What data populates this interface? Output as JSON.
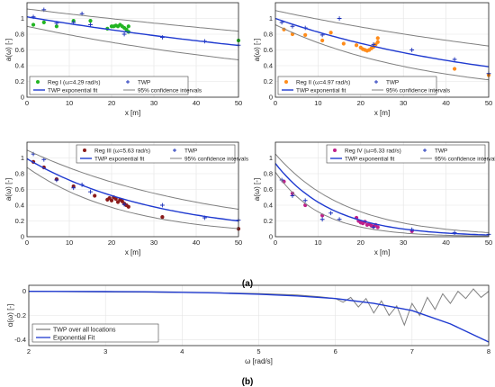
{
  "figure": {
    "label_a": "(a)",
    "label_b": "(b)"
  },
  "colors": {
    "fit": "#1f3ad0",
    "twp": "#1a2fb8",
    "ci": "#808080",
    "reg1": "#22b522",
    "reg2": "#ff8c1a",
    "reg3": "#8b1a1a",
    "reg4": "#c0208a"
  },
  "chart_data": [
    {
      "type": "scatter",
      "xlabel": "x [m]",
      "ylabel": "a(ω) [-]",
      "xlim": [
        0,
        50
      ],
      "ylim": [
        0,
        1.2
      ],
      "xticks": [
        0,
        10,
        20,
        30,
        40,
        50
      ],
      "yticks": [
        0,
        0.2,
        0.4,
        0.6,
        0.8,
        1
      ],
      "grid": true,
      "legend_location": "bottom-left",
      "legend": [
        "Reg I (ω=4.29 rad/s)",
        "TWP",
        "TWP exponential fit",
        "95% confidence intervals"
      ],
      "series": [
        {
          "name": "Reg I (ω=4.29 rad/s)",
          "kind": "dots",
          "color": "reg1",
          "x": [
            1.5,
            4,
            7,
            11,
            15,
            19,
            20,
            20.5,
            21,
            21.5,
            22,
            22.5,
            23,
            23.5,
            24,
            24,
            50
          ],
          "y": [
            0.92,
            0.95,
            0.9,
            0.97,
            0.97,
            0.87,
            0.9,
            0.9,
            0.91,
            0.9,
            0.92,
            0.9,
            0.88,
            0.86,
            0.9,
            0.83,
            0.72
          ]
        },
        {
          "name": "TWP",
          "kind": "plus",
          "color": "twp",
          "x": [
            1.5,
            4,
            7,
            11,
            13,
            15,
            23,
            32,
            42,
            50
          ],
          "y": [
            1.02,
            1.11,
            0.94,
            0.95,
            1.06,
            0.92,
            0.8,
            0.76,
            0.71,
            0.66
          ]
        },
        {
          "name": "TWP exponential fit",
          "kind": "fit",
          "color": "fit",
          "a": 1.02,
          "b": 0.0088
        },
        {
          "name": "95% confidence intervals",
          "kind": "ci",
          "color": "ci",
          "upper": {
            "a": 1.12,
            "b": 0.0058
          },
          "lower": {
            "a": 0.9,
            "b": 0.0128
          }
        }
      ]
    },
    {
      "type": "scatter",
      "xlabel": "x [m]",
      "ylabel": "a(ω) [-]",
      "xlim": [
        0,
        50
      ],
      "ylim": [
        0,
        1.2
      ],
      "xticks": [
        0,
        10,
        20,
        30,
        40,
        50
      ],
      "yticks": [
        0,
        0.2,
        0.4,
        0.6,
        0.8,
        1
      ],
      "grid": true,
      "legend_location": "bottom-left",
      "legend": [
        "Reg II (ω=4.97 rad/s)",
        "TWP",
        "TWP exponential fit",
        "95% confidence intervals"
      ],
      "series": [
        {
          "name": "Reg II (ω=4.97 rad/s)",
          "kind": "dots",
          "color": "reg2",
          "x": [
            2,
            4,
            7,
            11,
            13,
            16,
            19,
            20,
            20.5,
            21,
            21.5,
            22,
            22.5,
            23,
            23.5,
            24,
            24,
            42,
            50
          ],
          "y": [
            0.86,
            0.8,
            0.79,
            0.72,
            0.82,
            0.68,
            0.66,
            0.63,
            0.61,
            0.6,
            0.59,
            0.6,
            0.62,
            0.64,
            0.67,
            0.7,
            0.75,
            0.36,
            0.28
          ]
        },
        {
          "name": "TWP",
          "kind": "plus",
          "color": "twp",
          "x": [
            1.5,
            4,
            7,
            11,
            15,
            23,
            32,
            42,
            50
          ],
          "y": [
            0.95,
            0.9,
            0.88,
            0.79,
            1.0,
            0.67,
            0.6,
            0.48,
            0.3
          ]
        },
        {
          "name": "TWP exponential fit",
          "kind": "fit",
          "color": "fit",
          "a": 1.0,
          "b": 0.019
        },
        {
          "name": "95% confidence intervals",
          "kind": "ci",
          "color": "ci",
          "upper": {
            "a": 1.1,
            "b": 0.0105
          },
          "lower": {
            "a": 0.92,
            "b": 0.0285
          }
        }
      ]
    },
    {
      "type": "scatter",
      "xlabel": "x [m]",
      "ylabel": "a(ω) [-]",
      "xlim": [
        0,
        50
      ],
      "ylim": [
        0,
        1.2
      ],
      "xticks": [
        0,
        10,
        20,
        30,
        40,
        50
      ],
      "yticks": [
        0,
        0.2,
        0.4,
        0.6,
        0.8,
        1
      ],
      "grid": true,
      "legend_location": "top-right",
      "legend": [
        "Reg III (ω=5.63 rad/s)",
        "TWP",
        "TWP exponential fit",
        "95% confidence intervals"
      ],
      "series": [
        {
          "name": "Reg III (ω=5.63 rad/s)",
          "kind": "dots",
          "color": "reg3",
          "x": [
            1.5,
            4,
            7,
            11,
            16,
            19,
            19.5,
            20,
            20.5,
            21,
            21.5,
            22,
            22.5,
            23,
            23.5,
            24,
            32,
            50
          ],
          "y": [
            0.95,
            0.88,
            0.73,
            0.64,
            0.52,
            0.47,
            0.49,
            0.46,
            0.5,
            0.48,
            0.44,
            0.47,
            0.45,
            0.42,
            0.4,
            0.38,
            0.25,
            0.1
          ]
        },
        {
          "name": "TWP",
          "kind": "plus",
          "color": "twp",
          "x": [
            1.5,
            4,
            7,
            11,
            13,
            15,
            23,
            32,
            42,
            50
          ],
          "y": [
            1.05,
            0.98,
            0.72,
            0.62,
            0.66,
            0.57,
            0.41,
            0.4,
            0.24,
            0.21
          ]
        },
        {
          "name": "TWP exponential fit",
          "kind": "fit",
          "color": "fit",
          "a": 0.99,
          "b": 0.032
        },
        {
          "name": "95% confidence intervals",
          "kind": "ci",
          "color": "ci",
          "upper": {
            "a": 1.1,
            "b": 0.023
          },
          "lower": {
            "a": 0.88,
            "b": 0.043
          }
        }
      ]
    },
    {
      "type": "scatter",
      "xlabel": "x [m]",
      "ylabel": "a(ω) [-]",
      "xlim": [
        0,
        50
      ],
      "ylim": [
        0,
        1.2
      ],
      "xticks": [
        0,
        10,
        20,
        30,
        40,
        50
      ],
      "yticks": [
        0,
        0.2,
        0.4,
        0.6,
        0.8,
        1
      ],
      "grid": true,
      "legend_location": "top-right",
      "legend": [
        "Reg IV (ω=6.33 rad/s)",
        "TWP",
        "TWP exponential fit",
        "95% confidence intervals"
      ],
      "series": [
        {
          "name": "Reg IV (ω=6.33 rad/s)",
          "kind": "dots",
          "color": "reg4",
          "x": [
            2,
            4,
            7,
            11,
            19,
            19.5,
            20,
            20.5,
            21,
            21.5,
            22,
            22.5,
            23,
            23.5,
            24,
            32
          ],
          "y": [
            0.7,
            0.55,
            0.4,
            0.27,
            0.24,
            0.2,
            0.18,
            0.17,
            0.19,
            0.15,
            0.16,
            0.14,
            0.13,
            0.15,
            0.12,
            0.07
          ]
        },
        {
          "name": "TWP",
          "kind": "plus",
          "color": "twp",
          "x": [
            1.5,
            4,
            7,
            11,
            13,
            15,
            23,
            32,
            42,
            50
          ],
          "y": [
            0.72,
            0.52,
            0.46,
            0.22,
            0.3,
            0.22,
            0.12,
            0.09,
            0.05,
            0.03
          ]
        },
        {
          "name": "TWP exponential fit",
          "kind": "fit",
          "color": "fit",
          "a": 0.93,
          "b": 0.075
        },
        {
          "name": "95% confidence intervals",
          "kind": "ci",
          "color": "ci",
          "upper": {
            "a": 1.05,
            "b": 0.06
          },
          "lower": {
            "a": 0.82,
            "b": 0.095
          }
        }
      ]
    },
    {
      "type": "line",
      "xlabel": "ω [rad/s]",
      "ylabel": "α(ω) [-]",
      "xlim": [
        2,
        8
      ],
      "ylim": [
        -0.45,
        0.05
      ],
      "xticks": [
        2,
        3,
        4,
        5,
        6,
        7,
        8
      ],
      "yticks": [
        0,
        -0.2,
        -0.4
      ],
      "grid": true,
      "legend_location": "bottom-left",
      "legend": [
        "TWP over all locations",
        "Exponential Fit"
      ],
      "series": [
        {
          "name": "TWP over all locations",
          "color": "ci",
          "x": [
            2,
            2.5,
            3,
            3.5,
            4,
            4.5,
            5,
            5.5,
            5.8,
            6.0,
            6.1,
            6.2,
            6.3,
            6.4,
            6.5,
            6.6,
            6.7,
            6.8,
            6.9,
            7.0,
            7.1,
            7.2,
            7.3,
            7.4,
            7.5,
            7.6,
            7.7,
            7.8,
            7.9,
            8.0
          ],
          "y": [
            0.0,
            -0.003,
            -0.005,
            -0.007,
            -0.01,
            -0.013,
            -0.018,
            -0.03,
            -0.045,
            -0.06,
            -0.09,
            -0.05,
            -0.13,
            -0.06,
            -0.18,
            -0.08,
            -0.2,
            -0.12,
            -0.28,
            -0.1,
            -0.2,
            -0.05,
            -0.15,
            -0.02,
            -0.1,
            0.0,
            -0.06,
            0.02,
            -0.05,
            0.0
          ]
        },
        {
          "name": "Exponential Fit",
          "color": "fit",
          "x": [
            2,
            2.5,
            3,
            3.5,
            4,
            4.5,
            5,
            5.5,
            6,
            6.5,
            7,
            7.5,
            8
          ],
          "y": [
            0.0,
            -0.001,
            -0.002,
            -0.004,
            -0.008,
            -0.014,
            -0.024,
            -0.038,
            -0.06,
            -0.1,
            -0.16,
            -0.27,
            -0.42
          ]
        }
      ]
    }
  ]
}
